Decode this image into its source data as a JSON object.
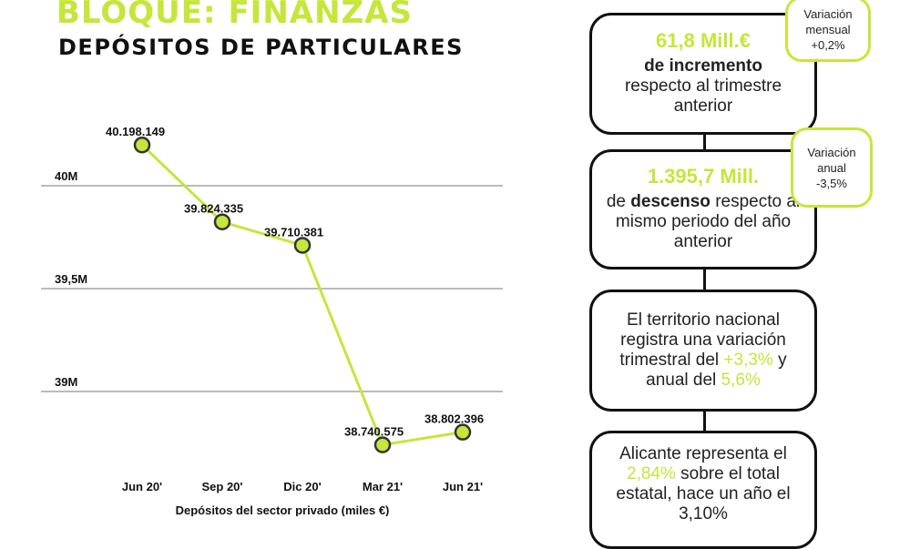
{
  "header": {
    "block_title": "BLOQUE: FINANZAS",
    "subtitle": "DEPÓSITOS DE PARTICULARES"
  },
  "chart_data": {
    "type": "line",
    "categories": [
      "Jun 20'",
      "Sep 20'",
      "Dic 20'",
      "Mar 21'",
      "Jun 21'"
    ],
    "values": [
      40198149,
      39824335,
      39710381,
      38740575,
      38802396
    ],
    "data_labels": [
      "40.198.149",
      "39.824.335",
      "39.710.381",
      "38.740.575",
      "38.802.396"
    ],
    "xlabel": "Depósitos del sector privado (miles €)",
    "yticks": [
      {
        "value": 40000000,
        "label": "40M"
      },
      {
        "value": 39500000,
        "label": "39,5M"
      },
      {
        "value": 39000000,
        "label": "39M"
      }
    ],
    "grid": true,
    "line_color": "#c5e63a"
  },
  "cards": [
    {
      "highlight": "61,8 Mill.€",
      "text_bold": "de incremento",
      "text": "respecto al trimestre anterior",
      "badge": {
        "l1": "Variación",
        "l2": "mensual",
        "value": "+0,2%"
      }
    },
    {
      "highlight": "1.395,7 Mill.",
      "text_pre": "de ",
      "text_bold": "descenso",
      "text": " respecto al mismo periodo del año anterior",
      "badge": {
        "l1": "Variación",
        "l2": "anual",
        "value": "-3,5%"
      }
    },
    {
      "p1": "El territorio nacional registra una variación trimestral del ",
      "v1": "+3,3%",
      "p2": " y anual del ",
      "v2": "5,6%"
    },
    {
      "p1": "Alicante representa el ",
      "v1": "2,84%",
      "p2": "  sobre el total estatal, hace un año el ",
      "v2": "3,10%"
    }
  ],
  "colors": {
    "accent": "#c5e63a",
    "text": "#111111"
  }
}
